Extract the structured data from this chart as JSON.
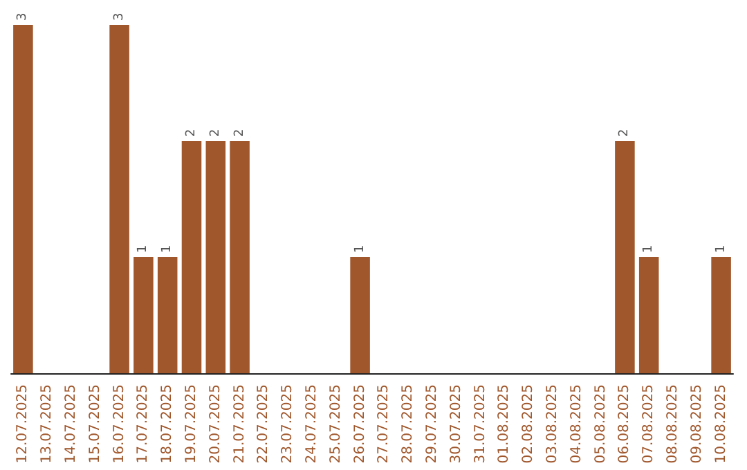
{
  "chart_data": {
    "type": "bar",
    "categories": [
      "12.07.2025",
      "13.07.2025",
      "14.07.2025",
      "15.07.2025",
      "16.07.2025",
      "17.07.2025",
      "18.07.2025",
      "19.07.2025",
      "20.07.2025",
      "21.07.2025",
      "22.07.2025",
      "23.07.2025",
      "24.07.2025",
      "25.07.2025",
      "26.07.2025",
      "27.07.2025",
      "28.07.2025",
      "29.07.2025",
      "30.07.2025",
      "31.07.2025",
      "01.08.2025",
      "02.08.2025",
      "03.08.2025",
      "04.08.2025",
      "05.08.2025",
      "06.08.2025",
      "07.08.2025",
      "08.08.2025",
      "09.08.2025",
      "10.08.2025"
    ],
    "values": [
      3,
      0,
      0,
      0,
      3,
      1,
      1,
      2,
      2,
      2,
      0,
      0,
      0,
      0,
      1,
      0,
      0,
      0,
      0,
      0,
      0,
      0,
      0,
      0,
      0,
      2,
      1,
      0,
      0,
      1
    ],
    "value_labels": [
      "3",
      null,
      null,
      null,
      "3",
      "1",
      "1",
      "2",
      "2",
      "2",
      null,
      null,
      null,
      null,
      "1",
      null,
      null,
      null,
      null,
      null,
      null,
      null,
      null,
      null,
      null,
      "2",
      "1",
      null,
      null,
      "1"
    ],
    "color": "#a0572c",
    "tick_labels": "x"
  }
}
